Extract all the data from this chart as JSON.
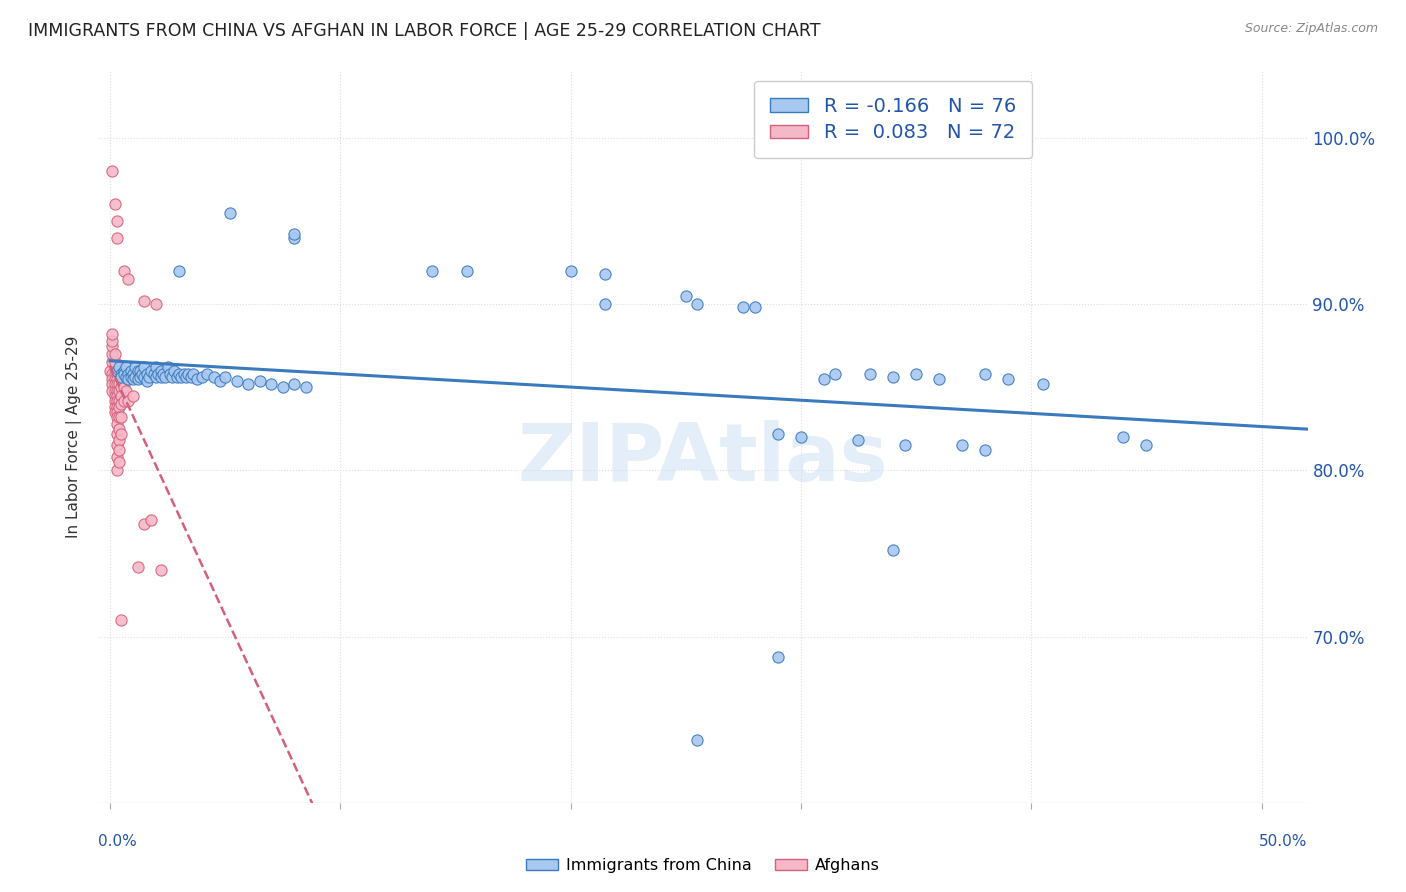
{
  "title": "IMMIGRANTS FROM CHINA VS AFGHAN IN LABOR FORCE | AGE 25-29 CORRELATION CHART",
  "source": "Source: ZipAtlas.com",
  "ylabel": "In Labor Force | Age 25-29",
  "legend_china_r": "R = -0.166",
  "legend_china_n": "N = 76",
  "legend_afghan_r": "R =  0.083",
  "legend_afghan_n": "N = 72",
  "china_color": "#a8c8f0",
  "afghan_color": "#f5b8c8",
  "china_line_color": "#3a7abf",
  "afghan_line_color": "#d4607a",
  "watermark": "ZIPAtlas",
  "china_scatter": [
    [
      0.003,
      0.86
    ],
    [
      0.004,
      0.862
    ],
    [
      0.005,
      0.858
    ],
    [
      0.005,
      0.856
    ],
    [
      0.006,
      0.86
    ],
    [
      0.006,
      0.858
    ],
    [
      0.007,
      0.862
    ],
    [
      0.007,
      0.856
    ],
    [
      0.008,
      0.858
    ],
    [
      0.008,
      0.855
    ],
    [
      0.009,
      0.86
    ],
    [
      0.009,
      0.856
    ],
    [
      0.01,
      0.858
    ],
    [
      0.01,
      0.855
    ],
    [
      0.011,
      0.862
    ],
    [
      0.011,
      0.856
    ],
    [
      0.012,
      0.86
    ],
    [
      0.012,
      0.855
    ],
    [
      0.013,
      0.86
    ],
    [
      0.013,
      0.856
    ],
    [
      0.014,
      0.858
    ],
    [
      0.015,
      0.862
    ],
    [
      0.015,
      0.856
    ],
    [
      0.016,
      0.858
    ],
    [
      0.016,
      0.854
    ],
    [
      0.017,
      0.856
    ],
    [
      0.018,
      0.86
    ],
    [
      0.019,
      0.858
    ],
    [
      0.02,
      0.862
    ],
    [
      0.02,
      0.856
    ],
    [
      0.021,
      0.858
    ],
    [
      0.022,
      0.86
    ],
    [
      0.022,
      0.856
    ],
    [
      0.023,
      0.858
    ],
    [
      0.024,
      0.856
    ],
    [
      0.025,
      0.862
    ],
    [
      0.026,
      0.858
    ],
    [
      0.027,
      0.856
    ],
    [
      0.028,
      0.86
    ],
    [
      0.029,
      0.856
    ],
    [
      0.03,
      0.858
    ],
    [
      0.031,
      0.856
    ],
    [
      0.032,
      0.858
    ],
    [
      0.033,
      0.856
    ],
    [
      0.034,
      0.858
    ],
    [
      0.035,
      0.856
    ],
    [
      0.036,
      0.858
    ],
    [
      0.038,
      0.855
    ],
    [
      0.04,
      0.856
    ],
    [
      0.042,
      0.858
    ],
    [
      0.045,
      0.856
    ],
    [
      0.048,
      0.854
    ],
    [
      0.05,
      0.856
    ],
    [
      0.055,
      0.854
    ],
    [
      0.06,
      0.852
    ],
    [
      0.065,
      0.854
    ],
    [
      0.07,
      0.852
    ],
    [
      0.075,
      0.85
    ],
    [
      0.08,
      0.852
    ],
    [
      0.085,
      0.85
    ],
    [
      0.03,
      0.92
    ],
    [
      0.052,
      0.955
    ],
    [
      0.08,
      0.94
    ],
    [
      0.08,
      0.942
    ],
    [
      0.14,
      0.92
    ],
    [
      0.155,
      0.92
    ],
    [
      0.2,
      0.92
    ],
    [
      0.215,
      0.918
    ],
    [
      0.215,
      0.9
    ],
    [
      0.25,
      0.905
    ],
    [
      0.255,
      0.9
    ],
    [
      0.275,
      0.898
    ],
    [
      0.28,
      0.898
    ],
    [
      0.31,
      0.855
    ],
    [
      0.315,
      0.858
    ],
    [
      0.33,
      0.858
    ],
    [
      0.34,
      0.856
    ],
    [
      0.35,
      0.858
    ],
    [
      0.36,
      0.855
    ],
    [
      0.38,
      0.858
    ],
    [
      0.39,
      0.855
    ],
    [
      0.405,
      0.852
    ],
    [
      0.44,
      0.82
    ],
    [
      0.45,
      0.815
    ],
    [
      0.29,
      0.822
    ],
    [
      0.3,
      0.82
    ],
    [
      0.325,
      0.818
    ],
    [
      0.345,
      0.815
    ],
    [
      0.37,
      0.815
    ],
    [
      0.38,
      0.812
    ],
    [
      0.34,
      0.752
    ],
    [
      0.29,
      0.688
    ],
    [
      0.255,
      0.638
    ]
  ],
  "afghan_scatter": [
    [
      0.0,
      0.86
    ],
    [
      0.001,
      0.858
    ],
    [
      0.001,
      0.855
    ],
    [
      0.001,
      0.852
    ],
    [
      0.001,
      0.848
    ],
    [
      0.001,
      0.865
    ],
    [
      0.001,
      0.87
    ],
    [
      0.001,
      0.875
    ],
    [
      0.001,
      0.878
    ],
    [
      0.001,
      0.882
    ],
    [
      0.002,
      0.862
    ],
    [
      0.002,
      0.858
    ],
    [
      0.002,
      0.855
    ],
    [
      0.002,
      0.852
    ],
    [
      0.002,
      0.848
    ],
    [
      0.002,
      0.845
    ],
    [
      0.002,
      0.842
    ],
    [
      0.002,
      0.838
    ],
    [
      0.002,
      0.835
    ],
    [
      0.002,
      0.865
    ],
    [
      0.002,
      0.87
    ],
    [
      0.003,
      0.858
    ],
    [
      0.003,
      0.855
    ],
    [
      0.003,
      0.852
    ],
    [
      0.003,
      0.848
    ],
    [
      0.003,
      0.845
    ],
    [
      0.003,
      0.842
    ],
    [
      0.003,
      0.838
    ],
    [
      0.003,
      0.835
    ],
    [
      0.003,
      0.832
    ],
    [
      0.003,
      0.828
    ],
    [
      0.003,
      0.822
    ],
    [
      0.003,
      0.815
    ],
    [
      0.003,
      0.808
    ],
    [
      0.003,
      0.8
    ],
    [
      0.004,
      0.858
    ],
    [
      0.004,
      0.852
    ],
    [
      0.004,
      0.848
    ],
    [
      0.004,
      0.842
    ],
    [
      0.004,
      0.838
    ],
    [
      0.004,
      0.832
    ],
    [
      0.004,
      0.825
    ],
    [
      0.004,
      0.818
    ],
    [
      0.004,
      0.812
    ],
    [
      0.004,
      0.805
    ],
    [
      0.005,
      0.86
    ],
    [
      0.005,
      0.856
    ],
    [
      0.005,
      0.85
    ],
    [
      0.005,
      0.845
    ],
    [
      0.005,
      0.84
    ],
    [
      0.005,
      0.832
    ],
    [
      0.005,
      0.822
    ],
    [
      0.006,
      0.858
    ],
    [
      0.006,
      0.85
    ],
    [
      0.006,
      0.842
    ],
    [
      0.007,
      0.858
    ],
    [
      0.007,
      0.848
    ],
    [
      0.008,
      0.855
    ],
    [
      0.008,
      0.842
    ],
    [
      0.009,
      0.858
    ],
    [
      0.01,
      0.858
    ],
    [
      0.01,
      0.845
    ],
    [
      0.012,
      0.742
    ],
    [
      0.015,
      0.768
    ],
    [
      0.018,
      0.77
    ],
    [
      0.022,
      0.74
    ],
    [
      0.001,
      0.98
    ],
    [
      0.002,
      0.96
    ],
    [
      0.003,
      0.95
    ],
    [
      0.003,
      0.94
    ],
    [
      0.006,
      0.92
    ],
    [
      0.008,
      0.915
    ],
    [
      0.015,
      0.902
    ],
    [
      0.02,
      0.9
    ],
    [
      0.005,
      0.71
    ]
  ],
  "xlim": [
    -0.005,
    0.52
  ],
  "ylim": [
    0.6,
    1.04
  ],
  "y_tick_positions": [
    0.7,
    0.8,
    0.9,
    1.0
  ],
  "x_tick_positions": [
    0.0,
    0.1,
    0.2,
    0.3,
    0.4,
    0.5
  ],
  "x_axis_label_left": "0.0%",
  "x_axis_label_right": "50.0%"
}
